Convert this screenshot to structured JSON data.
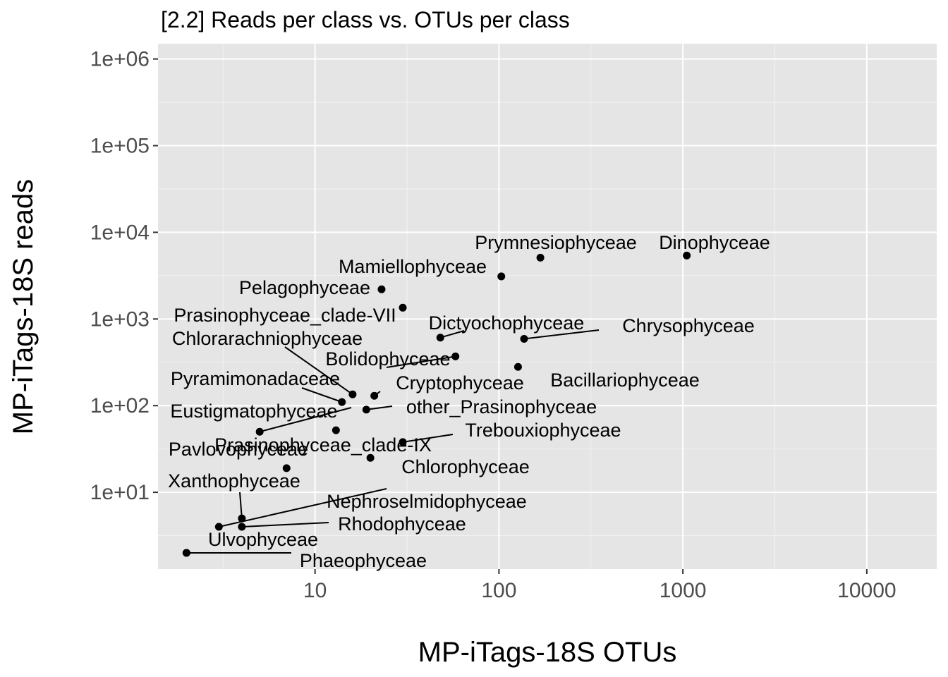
{
  "chart_data": {
    "type": "scatter",
    "title": "[2.2] Reads per class vs. OTUs per class",
    "xlabel": "MP-iTags-18S OTUs",
    "ylabel": "MP-iTags-18S reads",
    "x_scale": "log10",
    "y_scale": "log10",
    "xlim": [
      1.4,
      24000
    ],
    "ylim": [
      1.3,
      1500000
    ],
    "x_ticks": [
      10,
      100,
      1000,
      10000
    ],
    "x_tick_labels": [
      "10",
      "100",
      "1000",
      "10000"
    ],
    "y_ticks": [
      10,
      100,
      1000,
      10000,
      100000,
      1000000
    ],
    "y_tick_labels": [
      "1e+01",
      "1e+02",
      "1e+03",
      "1e+04",
      "1e+05",
      "1e+06"
    ],
    "grid": true,
    "legend": "none",
    "points": [
      {
        "label": "Dinophyceae",
        "x": 1050,
        "y": 5400
      },
      {
        "label": "Prymnesiophyceae",
        "x": 168,
        "y": 5100
      },
      {
        "label": "Mamiellophyceae",
        "x": 103,
        "y": 3100
      },
      {
        "label": "Pelagophyceae",
        "x": 23,
        "y": 2200
      },
      {
        "label": "Prasinophyceae_clade-VII",
        "x": 30,
        "y": 1350
      },
      {
        "label": "Dictyochophyceae",
        "x": 48,
        "y": 610
      },
      {
        "label": "Chrysophyceae",
        "x": 137,
        "y": 590
      },
      {
        "label": "Bolidophyceae",
        "x": 58,
        "y": 370
      },
      {
        "label": "Bacillariophyceae",
        "x": 127,
        "y": 280
      },
      {
        "label": "Chlorarachniophyceae",
        "x": 16,
        "y": 135
      },
      {
        "label": "Cryptophyceae",
        "x": 21,
        "y": 130
      },
      {
        "label": "Pyramimonadaceae",
        "x": 14,
        "y": 110
      },
      {
        "label": "other_Prasinophyceae",
        "x": 19,
        "y": 90
      },
      {
        "label": "Eustigmatophyceae",
        "x": 5,
        "y": 50
      },
      {
        "label": "Prasinophyceae_clade-IX",
        "x": 13,
        "y": 52
      },
      {
        "label": "Trebouxiophyceae",
        "x": 30,
        "y": 38
      },
      {
        "label": "Chlorophyceae",
        "x": 20,
        "y": 25
      },
      {
        "label": "Pavlovophyceae",
        "x": 7,
        "y": 19
      },
      {
        "label": "Nephroselmidophyceae",
        "x": 3,
        "y": 4
      },
      {
        "label": "Xanthophyceae",
        "x": 4,
        "y": 5
      },
      {
        "label": "Rhodophyceae",
        "x": 4,
        "y": 4
      },
      {
        "label": "Ulvophyceae",
        "x": 2,
        "y": 2
      },
      {
        "label": "Phaeophyceae",
        "x": 2,
        "y": 2
      }
    ]
  }
}
